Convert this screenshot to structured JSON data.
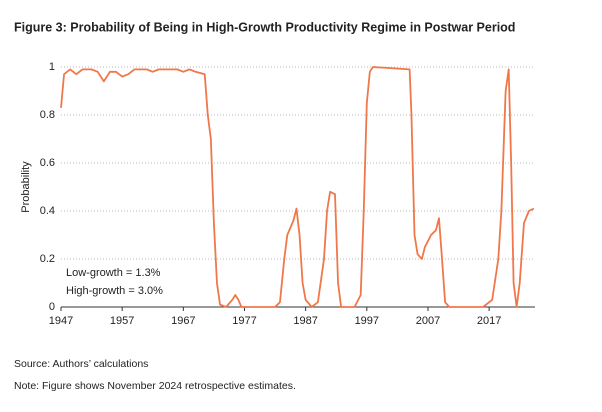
{
  "chart_data": {
    "type": "line",
    "title": "Figure 3: Probability of Being in High-Growth Productivity Regime in Postwar Period",
    "y_label": "Probability",
    "annotations": [
      "Low-growth = 1.3%",
      "High-growth = 3.0%"
    ],
    "source": "Source: Authors’ calculations",
    "note": "Note: Figure shows November 2024 retrospective estimates.",
    "color": "#f0774a",
    "grid": true,
    "xlim": [
      1947,
      2024.5
    ],
    "xticks": [
      1947,
      1957,
      1967,
      1977,
      1987,
      1997,
      2007,
      2017
    ],
    "ylim": [
      0,
      1
    ],
    "yticks": [
      0,
      0.2,
      0.4,
      0.6,
      0.8,
      1
    ],
    "x": [
      1947,
      1947.5,
      1948.5,
      1949.5,
      1950.5,
      1952,
      1953,
      1954,
      1955,
      1956,
      1957,
      1958,
      1959,
      1961,
      1962,
      1963,
      1965,
      1966,
      1967,
      1968,
      1969,
      1970.5,
      1971,
      1971.5,
      1972,
      1972.5,
      1973,
      1974,
      1975,
      1975.5,
      1976,
      1976.5,
      1982,
      1982.8,
      1983.5,
      1984,
      1985,
      1985.5,
      1986,
      1986.5,
      1987,
      1988,
      1989,
      1990,
      1990.5,
      1991,
      1991.8,
      1992.3,
      1992.8,
      1995,
      1996,
      1996.5,
      1997,
      1997.5,
      1998,
      2004,
      2004.3,
      2004.8,
      2005.3,
      2006,
      2006.5,
      2007.5,
      2008.3,
      2008.8,
      2009.3,
      2009.8,
      2010.5,
      2016,
      2017.5,
      2018.5,
      2019,
      2019.7,
      2020.2,
      2020.6,
      2021,
      2021.5,
      2022,
      2022.7,
      2023.5,
      2024.3
    ],
    "values": [
      0.83,
      0.97,
      0.99,
      0.97,
      0.99,
      0.99,
      0.98,
      0.94,
      0.98,
      0.98,
      0.96,
      0.97,
      0.99,
      0.99,
      0.98,
      0.99,
      0.99,
      0.99,
      0.98,
      0.99,
      0.98,
      0.97,
      0.8,
      0.7,
      0.35,
      0.1,
      0.01,
      0.0,
      0.03,
      0.05,
      0.03,
      0.0,
      0.0,
      0.02,
      0.2,
      0.3,
      0.36,
      0.41,
      0.3,
      0.1,
      0.03,
      0.0,
      0.02,
      0.2,
      0.4,
      0.48,
      0.47,
      0.1,
      0.0,
      0.0,
      0.05,
      0.4,
      0.85,
      0.98,
      1.0,
      0.99,
      0.8,
      0.3,
      0.22,
      0.2,
      0.25,
      0.3,
      0.32,
      0.37,
      0.2,
      0.02,
      0.0,
      0.0,
      0.03,
      0.2,
      0.4,
      0.9,
      0.99,
      0.6,
      0.1,
      0.0,
      0.1,
      0.35,
      0.4,
      0.41
    ]
  }
}
